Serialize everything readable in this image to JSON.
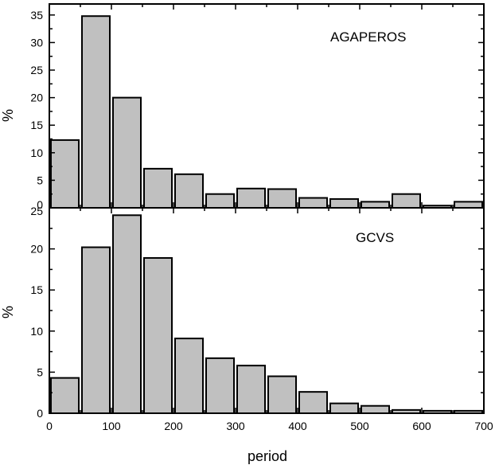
{
  "chart_data": [
    {
      "type": "bar",
      "panel": "top",
      "annotation": "AGAPEROS",
      "ylabel": "%",
      "xlim": [
        0,
        700
      ],
      "ylim": [
        0,
        37
      ],
      "yticks": [
        "0",
        "5",
        "10",
        "15",
        "20",
        "25",
        "30",
        "35"
      ],
      "bin_width": 50,
      "x": [
        25,
        75,
        125,
        175,
        225,
        275,
        325,
        375,
        425,
        475,
        525,
        575,
        625,
        675
      ],
      "values": [
        12.3,
        34.8,
        20.0,
        7.1,
        6.1,
        2.5,
        3.5,
        3.4,
        1.8,
        1.6,
        1.1,
        2.5,
        0.4,
        1.1
      ],
      "bar_color": "#c0c0c0"
    },
    {
      "type": "bar",
      "panel": "bottom",
      "annotation": "GCVS",
      "ylabel": "%",
      "xlabel": "period",
      "xlim": [
        0,
        700
      ],
      "ylim": [
        0,
        25
      ],
      "yticks": [
        "0",
        "5",
        "10",
        "15",
        "20",
        "25"
      ],
      "xticks": [
        "0",
        "100",
        "200",
        "300",
        "400",
        "500",
        "600",
        "700"
      ],
      "bin_width": 50,
      "x": [
        25,
        75,
        125,
        175,
        225,
        275,
        325,
        375,
        425,
        475,
        525,
        575,
        625,
        675
      ],
      "values": [
        4.3,
        20.2,
        24.1,
        18.9,
        9.1,
        6.7,
        5.8,
        4.5,
        2.6,
        1.2,
        0.9,
        0.4,
        0.3,
        0.3
      ],
      "bar_color": "#c0c0c0"
    }
  ]
}
